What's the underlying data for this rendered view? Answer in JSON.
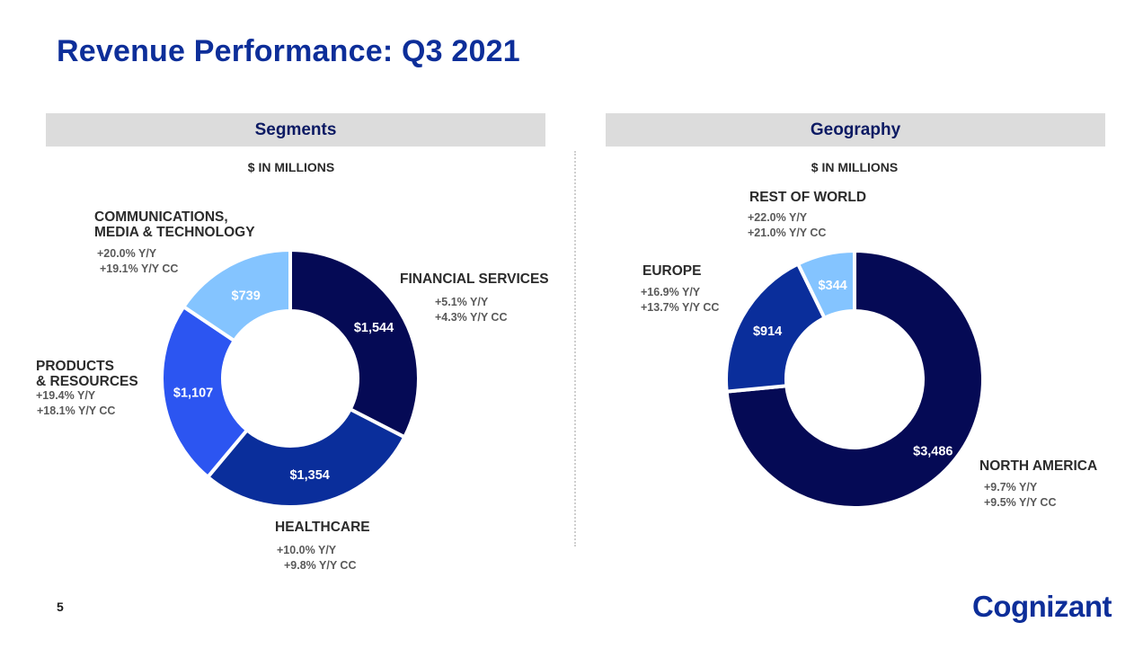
{
  "title": "Revenue Performance: Q3 2021",
  "page_number": "5",
  "logo_text": "Cognizant",
  "colors": {
    "title": "#0d2e99",
    "header_bg": "#dcdcdc",
    "darkest_navy": "#050a55",
    "royal_blue": "#0a2e9b",
    "bright_blue": "#2c55f1",
    "light_blue": "#84c4ff"
  },
  "chart_data": [
    {
      "type": "pie",
      "panel_title": "Segments",
      "subtitle": "$ IN MILLIONS",
      "slices": [
        {
          "label": "FINANCIAL SERVICES",
          "value": 1544,
          "value_label": "$1,544",
          "yy": "+5.1%  Y/Y",
          "yycc": "+4.3%  Y/Y CC",
          "color": "#050a55"
        },
        {
          "label": "HEALTHCARE",
          "value": 1354,
          "value_label": "$1,354",
          "yy": "+10.0%  Y/Y",
          "yycc": "+9.8%  Y/Y CC",
          "color": "#0a2e9b"
        },
        {
          "label": "PRODUCTS & RESOURCES",
          "label_lines": [
            "PRODUCTS",
            "& RESOURCES"
          ],
          "value": 1107,
          "value_label": "$1,107",
          "yy": "+19.4%  Y/Y",
          "yycc": "+18.1%  Y/Y CC",
          "color": "#2c55f1"
        },
        {
          "label": "COMMUNICATIONS, MEDIA & TECHNOLOGY",
          "label_lines": [
            "COMMUNICATIONS,",
            "MEDIA & TECHNOLOGY"
          ],
          "value": 739,
          "value_label": "$739",
          "yy": "+20.0%  Y/Y",
          "yycc": "+19.1%  Y/Y CC",
          "color": "#84c4ff"
        }
      ]
    },
    {
      "type": "pie",
      "panel_title": "Geography",
      "subtitle": "$ IN MILLIONS",
      "slices": [
        {
          "label": "NORTH AMERICA",
          "value": 3486,
          "value_label": "$3,486",
          "yy": "+9.7%  Y/Y",
          "yycc": "+9.5%  Y/Y CC",
          "color": "#050a55"
        },
        {
          "label": "EUROPE",
          "value": 914,
          "value_label": "$914",
          "yy": "+16.9%  Y/Y",
          "yycc": "+13.7%  Y/Y CC",
          "color": "#0a2e9b"
        },
        {
          "label": "REST OF WORLD",
          "value": 344,
          "value_label": "$344",
          "yy": "+22.0%  Y/Y",
          "yycc": "+21.0%  Y/Y CC",
          "color": "#84c4ff"
        }
      ]
    }
  ]
}
